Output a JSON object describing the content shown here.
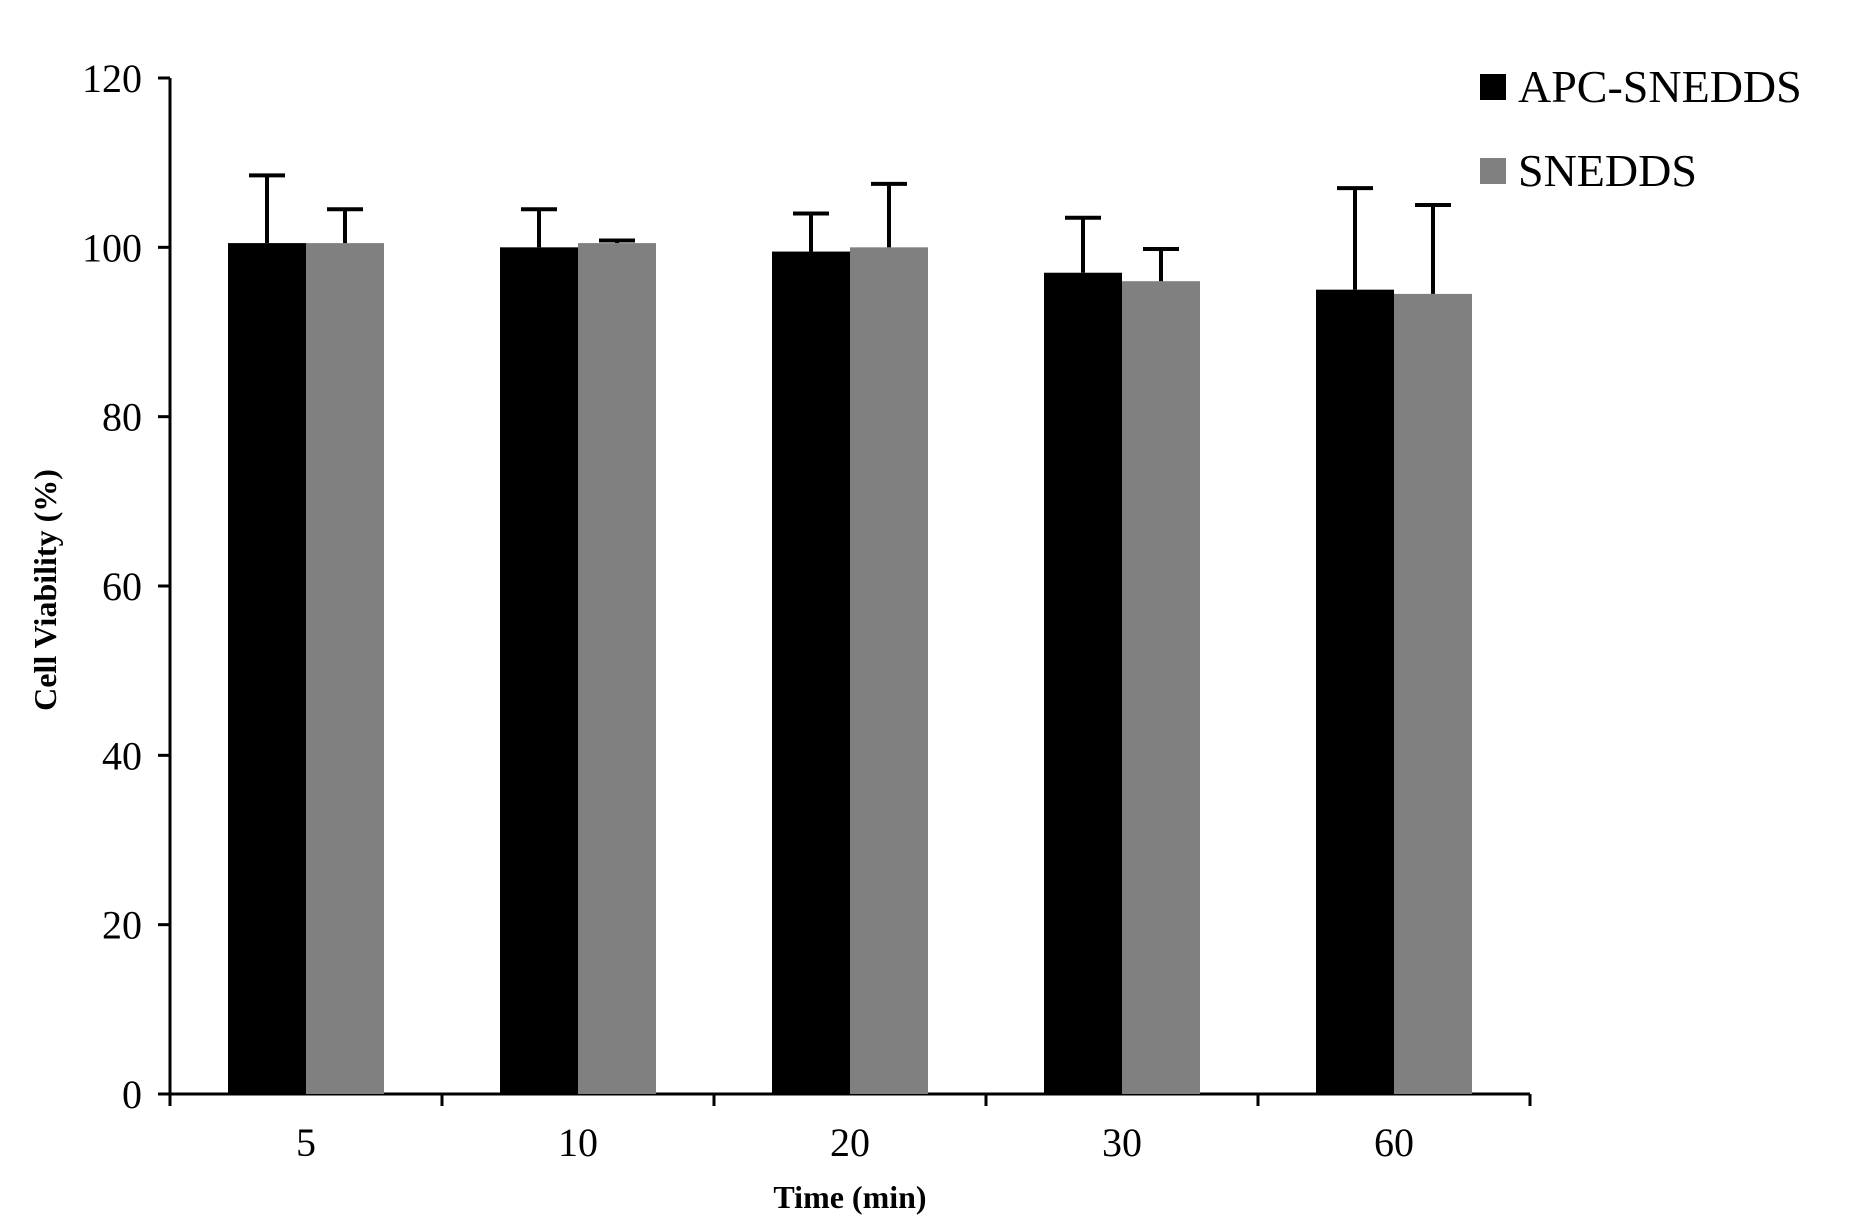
{
  "chart_data": {
    "type": "bar",
    "title": "",
    "xlabel": "Time (min)",
    "ylabel": "Cell Viability (%)",
    "ylim": [
      0,
      120
    ],
    "yticks": [
      0,
      20,
      40,
      60,
      80,
      100,
      120
    ],
    "categories": [
      "5",
      "10",
      "20",
      "30",
      "60"
    ],
    "series": [
      {
        "name": "APC-SNEDDS",
        "color": "#000000",
        "values": [
          100.5,
          100.0,
          99.5,
          97.0,
          95.0
        ],
        "errors": [
          8.0,
          4.5,
          4.5,
          6.5,
          12.0
        ]
      },
      {
        "name": "SNEDDS",
        "color": "#808080",
        "values": [
          100.5,
          100.5,
          100.0,
          96.0,
          94.5
        ],
        "errors": [
          4.0,
          0.3,
          7.5,
          3.8,
          10.5
        ]
      }
    ],
    "legend": "top-right"
  }
}
